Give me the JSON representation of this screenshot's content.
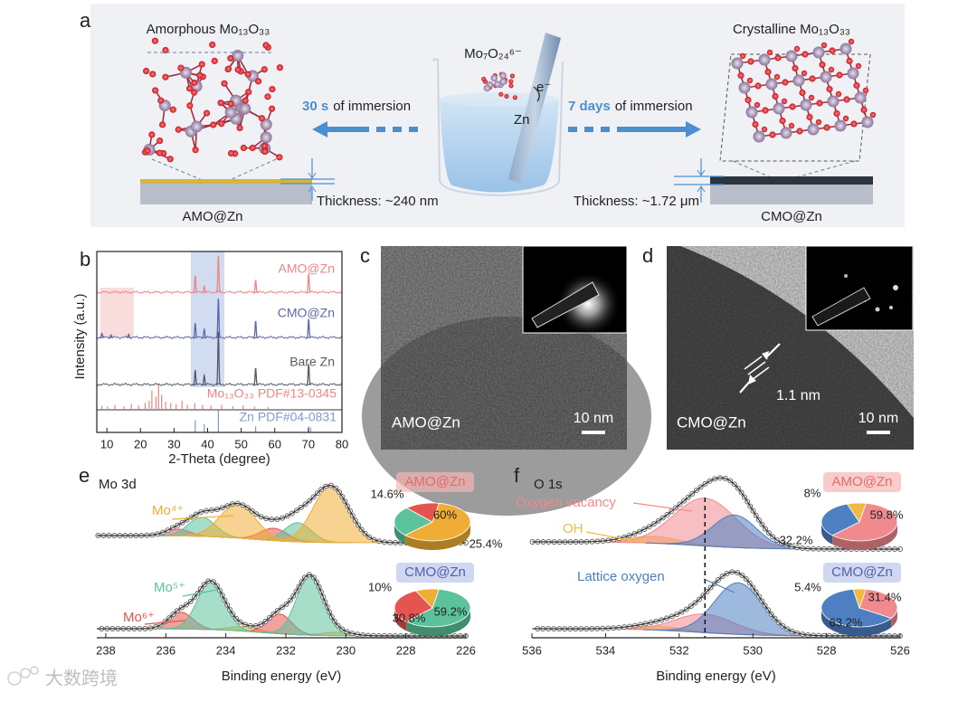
{
  "watermark": "大数跨境",
  "panel_a": {
    "label": "a",
    "amorphous_title": "Amorphous Mo₁₃O₃₃",
    "crystalline_title": "Crystalline Mo₁₃O₃₃",
    "ion": "Mo₇O₂₄⁶⁻",
    "electron": "e⁻",
    "zn": "Zn",
    "left_time": "30 s",
    "left_rest": "of immersion",
    "right_time": "7 days",
    "right_rest": "of immersion",
    "thickness_left": "Thickness: ~240 nm",
    "thickness_right": "Thickness: ~1.72 μm",
    "left_sample": "AMO@Zn",
    "right_sample": "CMO@Zn"
  },
  "panel_c": {
    "label": "c",
    "sample": "AMO@Zn",
    "scale_bar": "10 nm"
  },
  "panel_d": {
    "label": "d",
    "sample": "CMO@Zn",
    "scale_bar": "10 nm",
    "spacing": "1.1 nm"
  },
  "chart_data": [
    {
      "type": "xrd",
      "label": "b",
      "x_label": "2-Theta (degree)",
      "y_label": "Intensity (a.u.)",
      "xlim": [
        7,
        80
      ],
      "xticks": [
        10,
        20,
        30,
        40,
        50,
        60,
        70,
        80
      ],
      "highlights": [
        {
          "range": [
            8,
            18
          ],
          "color": "#f8d7d7"
        },
        {
          "range": [
            35,
            45
          ],
          "color": "#c9d6ee"
        }
      ],
      "series": [
        {
          "name": "AMO@Zn",
          "color": "#f08585",
          "kind": "pattern",
          "peak_x": [
            36.3,
            39.0,
            43.2,
            54.3,
            70.1
          ],
          "peak_heights": [
            0.4,
            0.15,
            0.9,
            0.3,
            0.45
          ]
        },
        {
          "name": "CMO@Zn",
          "color": "#5b68aa",
          "kind": "pattern",
          "peak_x": [
            8.5,
            11.2,
            16.5,
            36.3,
            39.0,
            43.2,
            54.3,
            70.1
          ],
          "peak_heights": [
            0.1,
            0.06,
            0.08,
            0.35,
            0.2,
            0.95,
            0.4,
            0.45
          ]
        },
        {
          "name": "Bare Zn",
          "color": "#555a66",
          "kind": "pattern",
          "peak_x": [
            36.3,
            39.0,
            43.2,
            54.3,
            70.1
          ],
          "peak_heights": [
            0.35,
            0.22,
            1.3,
            0.4,
            0.5
          ]
        },
        {
          "name": "Mo₁₃O₃₃ PDF#13-0345",
          "color": "#f08585",
          "kind": "sticks",
          "peak_x": [
            8.5,
            10.2,
            12.4,
            15.1,
            17.3,
            19.5,
            21.4,
            22.6,
            23.4,
            24.6,
            25.4,
            26.3,
            27.5,
            29.0,
            30.6,
            32.4,
            34.0,
            36.2,
            38.5,
            41.0,
            44.2,
            47.5,
            50.6,
            54.0,
            58.0
          ],
          "peak_heights": [
            0.08,
            0.06,
            0.1,
            0.07,
            0.12,
            0.08,
            0.15,
            0.2,
            0.45,
            0.3,
            0.6,
            0.35,
            0.18,
            0.15,
            0.12,
            0.2,
            0.1,
            0.14,
            0.1,
            0.08,
            0.1,
            0.07,
            0.09,
            0.06,
            0.05
          ]
        },
        {
          "name": "Zn PDF#04-0831",
          "color": "#7f9cd0",
          "kind": "sticks",
          "peak_x": [
            36.3,
            39.0,
            43.2,
            54.3,
            70.1,
            70.7
          ],
          "peak_heights": [
            0.3,
            0.2,
            0.55,
            0.15,
            0.15,
            0.12
          ]
        }
      ]
    },
    {
      "type": "xps",
      "label": "e",
      "title": "Mo 3d",
      "x_label": "Binding energy (eV)",
      "xlim": [
        238.3,
        226
      ],
      "xticks": [
        238,
        236,
        234,
        232,
        230,
        228,
        226
      ],
      "species": [
        {
          "name": "Mo⁴⁺",
          "color": "#f0ad35"
        },
        {
          "name": "Mo⁵⁺",
          "color": "#5cc29c"
        },
        {
          "name": "Mo⁶⁺",
          "color": "#e5544f"
        }
      ],
      "spectra": [
        {
          "name": "AMO@Zn",
          "components": [
            {
              "species": 2,
              "center": 235.6,
              "height": 0.12,
              "width": 0.4
            },
            {
              "species": 2,
              "center": 232.4,
              "height": 0.22,
              "width": 0.45
            },
            {
              "species": 1,
              "center": 234.8,
              "height": 0.34,
              "width": 0.45
            },
            {
              "species": 1,
              "center": 231.6,
              "height": 0.34,
              "width": 0.45
            },
            {
              "species": 0,
              "center": 233.6,
              "height": 0.6,
              "width": 0.6
            },
            {
              "species": 0,
              "center": 230.5,
              "height": 1.0,
              "width": 0.6
            }
          ],
          "pie": {
            "values": [
              60,
              25.4,
              14.6
            ],
            "value_labels": [
              "60%",
              "25.4%",
              "14.6%"
            ],
            "species": [
              0,
              1,
              2
            ]
          }
        },
        {
          "name": "CMO@Zn",
          "components": [
            {
              "species": 0,
              "center": 233.4,
              "height": 0.08,
              "width": 0.5
            },
            {
              "species": 0,
              "center": 230.3,
              "height": 0.06,
              "width": 0.5
            },
            {
              "species": 2,
              "center": 235.5,
              "height": 0.3,
              "width": 0.4
            },
            {
              "species": 2,
              "center": 232.2,
              "height": 0.35,
              "width": 0.4
            },
            {
              "species": 1,
              "center": 234.5,
              "height": 0.85,
              "width": 0.45
            },
            {
              "species": 1,
              "center": 231.2,
              "height": 1.05,
              "width": 0.45
            }
          ],
          "pie": {
            "values": [
              59.2,
              30.8,
              10
            ],
            "value_labels": [
              "59.2%",
              "30.8%",
              "10%"
            ],
            "species": [
              1,
              2,
              0
            ]
          }
        }
      ]
    },
    {
      "type": "xps",
      "label": "f",
      "title": "O 1s",
      "x_label": "Binding energy (eV)",
      "xlim": [
        536,
        526
      ],
      "xticks": [
        536,
        534,
        532,
        530,
        528,
        526
      ],
      "marker_line": 531.3,
      "species": [
        {
          "name": "Oxygen vacancy",
          "color": "#f08a8e"
        },
        {
          "name": "OH",
          "color": "#f0ba40"
        },
        {
          "name": "Lattice oxygen",
          "color": "#4d7fc2"
        }
      ],
      "spectra": [
        {
          "name": "AMO@Zn",
          "components": [
            {
              "species": 1,
              "center": 532.7,
              "height": 0.12,
              "width": 0.7
            },
            {
              "species": 0,
              "center": 531.3,
              "height": 0.85,
              "width": 0.85
            },
            {
              "species": 2,
              "center": 530.5,
              "height": 0.58,
              "width": 0.6
            }
          ],
          "pie": {
            "values": [
              59.8,
              32.2,
              8
            ],
            "value_labels": [
              "59.8%",
              "32.2%",
              "8%"
            ],
            "species": [
              0,
              2,
              1
            ]
          }
        },
        {
          "name": "CMO@Zn",
          "components": [
            {
              "species": 1,
              "center": 532.6,
              "height": 0.07,
              "width": 0.7
            },
            {
              "species": 0,
              "center": 531.3,
              "height": 0.33,
              "width": 0.8
            },
            {
              "species": 2,
              "center": 530.4,
              "height": 0.92,
              "width": 0.65
            }
          ],
          "pie": {
            "values": [
              31.4,
              63.2,
              5.4
            ],
            "value_labels": [
              "31.4%",
              "63.2%",
              "5.4%"
            ],
            "species": [
              0,
              2,
              1
            ]
          }
        }
      ]
    }
  ]
}
